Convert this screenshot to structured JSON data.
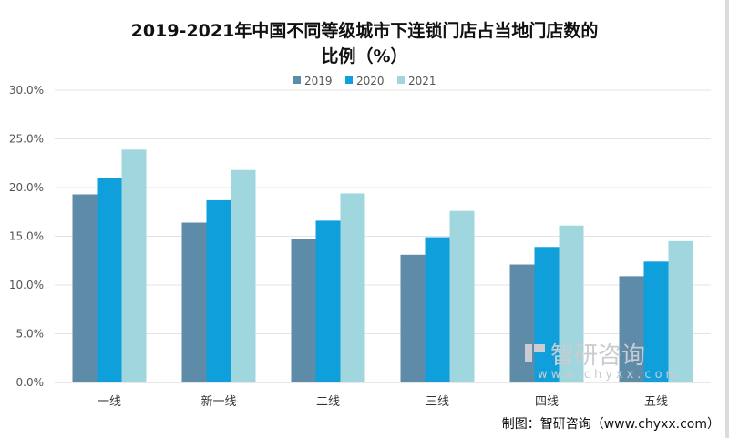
{
  "chart_data": {
    "type": "bar",
    "title_line1": "2019-2021年中国不同等级城市下连锁门店占当地门店数的",
    "title_line2": "比例（%）",
    "categories": [
      "一线",
      "新一线",
      "二线",
      "三线",
      "四线",
      "五线"
    ],
    "series": [
      {
        "name": "2019",
        "color": "#5e8ba8",
        "values": [
          19.3,
          16.4,
          14.7,
          13.1,
          12.1,
          10.9
        ]
      },
      {
        "name": "2020",
        "color": "#0f9fdb",
        "values": [
          21.0,
          18.7,
          16.6,
          14.9,
          13.9,
          12.4
        ]
      },
      {
        "name": "2021",
        "color": "#a0d6dd",
        "values": [
          23.9,
          21.8,
          19.4,
          17.6,
          16.1,
          14.5
        ]
      }
    ],
    "ylim": [
      0,
      30
    ],
    "yticks": [
      "0.0%",
      "5.0%",
      "10.0%",
      "15.0%",
      "20.0%",
      "25.0%",
      "30.0%"
    ],
    "grid": true,
    "legend": "top-center",
    "xlabel": "",
    "ylabel": ""
  },
  "watermark": {
    "brand": "智研咨询",
    "url": "www.chyxx.com"
  },
  "source": "制图：智研咨询（www.chyxx.com）"
}
